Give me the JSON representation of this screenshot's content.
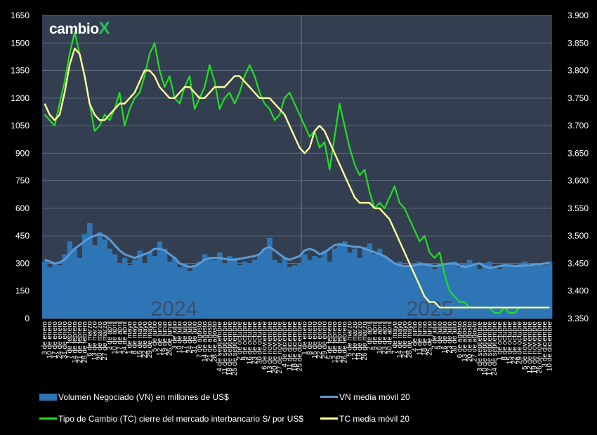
{
  "logo": {
    "text": "cambio",
    "mark": "X"
  },
  "legend": {
    "vn": "Volumen Negociado (VN) en millones de US$",
    "vn_ma": "VN media móvil 20",
    "tc": "Tipo de Cambio (TC) cierre del mercado interbancario S/ por US$",
    "tc_ma": "TC media móvil 20"
  },
  "colors": {
    "background": "#000000",
    "plot": "#333f50",
    "vn": "#2e75b6",
    "vn_ma": "#5b9bd5",
    "tc": "#22dd22",
    "tc_ma": "#ffff99",
    "year_text": "#3c4f69"
  },
  "chart_data": {
    "type": "bar",
    "left_axis": {
      "range": [
        0,
        1650
      ],
      "ticks": [
        "0",
        "150",
        "300",
        "450",
        "600",
        "750",
        "900",
        "1050",
        "1200",
        "1350",
        "1500",
        "1650"
      ]
    },
    "right_axis": {
      "range": [
        3.35,
        3.9
      ],
      "ticks": [
        "3.350",
        "3.400",
        "3.450",
        "3.500",
        "3.550",
        "3.600",
        "3.650",
        "3.700",
        "3.750",
        "3.800",
        "3.850",
        "3.900"
      ]
    },
    "year_labels": [
      "2024",
      "2025"
    ],
    "x_labels": [
      "3 de enero",
      "10 de enero",
      "17 de enero",
      "24 de enero",
      "31 de enero",
      "7 de febrero",
      "14 de febrero",
      "21 de febrero",
      "28 de febrero",
      "6 de marzo",
      "13 de marzo",
      "20 de marzo",
      "27 de marzo",
      "3 de abril",
      "10 de abril",
      "17 de abril",
      "24 de abril",
      "1 de mayo",
      "8 de mayo",
      "15 de mayo",
      "22 de mayo",
      "29 de mayo",
      "5 de junio",
      "12 de junio",
      "19 de junio",
      "26 de junio",
      "3 de julio",
      "10 de julio",
      "17 de julio",
      "24 de julio",
      "31 de julio",
      "7 de agosto",
      "14 de agosto",
      "21 de agosto",
      "28 de agosto",
      "4 de septiembre",
      "11 de septiembre",
      "18 de septiembre",
      "25 de septiembre",
      "2 de octubre",
      "9 de octubre",
      "16 de octubre",
      "23 de octubre",
      "30 de octubre",
      "6 de noviembre",
      "13 de noviembre",
      "20 de noviembre",
      "27 de noviembre",
      "4 de diciembre",
      "11 de diciembre",
      "18 de diciembre",
      "25 de diciembre",
      "1 de enero",
      "8 de enero",
      "15 de enero",
      "22 de enero",
      "29 de enero",
      "5 de febrero",
      "12 de febrero",
      "19 de febrero",
      "26 de febrero",
      "5 de marzo",
      "12 de marzo",
      "19 de marzo",
      "26 de marzo",
      "2 de abril",
      "9 de abril",
      "16 de abril",
      "23 de abril",
      "30 de abril",
      "7 de mayo",
      "14 de mayo",
      "21 de mayo",
      "28 de mayo",
      "4 de junio",
      "11 de junio",
      "18 de junio",
      "25 de junio",
      "2 de julio",
      "9 de julio",
      "16 de julio",
      "23 de julio",
      "30 de julio",
      "6 de agosto",
      "13 de agosto",
      "20 de agosto",
      "27 de agosto",
      "3 de septiembre",
      "10 de septiembre",
      "17 de septiembre",
      "24 de septiembre",
      "1 de octubre",
      "8 de octubre",
      "15 de octubre",
      "22 de octubre",
      "29 de octubre",
      "5 de noviembre",
      "12 de noviembre",
      "19 de noviembre",
      "26 de noviembre",
      "3 de diciembre",
      "10 de diciembre"
    ],
    "series": [
      {
        "name": "Volumen Negociado (VN) en millones de US$",
        "axis": "left",
        "type": "bar",
        "values": [
          310,
          280,
          300,
          290,
          350,
          420,
          380,
          330,
          460,
          520,
          400,
          470,
          430,
          380,
          350,
          300,
          330,
          290,
          320,
          370,
          300,
          360,
          340,
          420,
          380,
          310,
          330,
          280,
          300,
          260,
          290,
          310,
          350,
          330,
          320,
          360,
          300,
          340,
          330,
          290,
          310,
          300,
          320,
          350,
          380,
          440,
          320,
          300,
          330,
          280,
          290,
          300,
          350,
          320,
          340,
          330,
          370,
          310,
          380,
          400,
          420,
          360,
          380,
          330,
          390,
          410,
          350,
          380,
          340,
          320,
          300,
          310,
          290,
          280,
          300,
          310,
          290,
          300,
          270,
          300,
          290,
          300,
          310,
          280,
          300,
          320,
          290,
          270,
          300,
          310,
          280,
          270,
          300,
          290,
          280,
          300,
          310,
          290,
          300,
          300,
          290,
          310
        ]
      },
      {
        "name": "VN media móvil 20",
        "axis": "left",
        "type": "line",
        "values": [
          320,
          310,
          300,
          305,
          320,
          350,
          380,
          400,
          420,
          440,
          450,
          460,
          450,
          430,
          400,
          370,
          350,
          340,
          330,
          340,
          350,
          360,
          380,
          380,
          370,
          350,
          330,
          300,
          290,
          280,
          285,
          300,
          320,
          330,
          330,
          330,
          325,
          320,
          320,
          325,
          330,
          335,
          340,
          350,
          380,
          390,
          370,
          350,
          330,
          320,
          330,
          340,
          370,
          380,
          370,
          350,
          360,
          380,
          400,
          405,
          400,
          395,
          390,
          390,
          380,
          370,
          360,
          350,
          340,
          320,
          300,
          290,
          285,
          285,
          290,
          295,
          295,
          290,
          285,
          290,
          295,
          300,
          300,
          290,
          280,
          285,
          295,
          300,
          285,
          275,
          280,
          285,
          290,
          290,
          285,
          285,
          290,
          290,
          295,
          295,
          300,
          305
        ]
      },
      {
        "name": "Tipo de Cambio (TC) cierre del mercado interbancario S/ por US$",
        "axis": "right",
        "type": "line",
        "values": [
          3.72,
          3.71,
          3.7,
          3.74,
          3.78,
          3.83,
          3.87,
          3.83,
          3.79,
          3.74,
          3.69,
          3.7,
          3.72,
          3.71,
          3.73,
          3.76,
          3.7,
          3.73,
          3.75,
          3.76,
          3.79,
          3.83,
          3.85,
          3.8,
          3.77,
          3.79,
          3.75,
          3.74,
          3.77,
          3.79,
          3.73,
          3.75,
          3.77,
          3.81,
          3.78,
          3.73,
          3.75,
          3.76,
          3.74,
          3.76,
          3.79,
          3.81,
          3.79,
          3.76,
          3.74,
          3.73,
          3.71,
          3.72,
          3.75,
          3.76,
          3.74,
          3.72,
          3.7,
          3.68,
          3.69,
          3.66,
          3.67,
          3.62,
          3.68,
          3.74,
          3.7,
          3.66,
          3.63,
          3.61,
          3.62,
          3.58,
          3.55,
          3.56,
          3.55,
          3.57,
          3.59,
          3.56,
          3.55,
          3.53,
          3.51,
          3.49,
          3.5,
          3.47,
          3.46,
          3.47,
          3.43,
          3.4,
          3.39,
          3.38,
          3.38,
          3.37,
          3.37,
          3.37,
          3.37,
          3.37,
          3.36,
          3.36,
          3.37,
          3.36,
          3.36,
          3.37,
          3.37,
          3.37,
          3.37,
          3.37,
          3.37,
          3.37
        ]
      },
      {
        "name": "TC media móvil 20",
        "axis": "right",
        "type": "line",
        "values": [
          3.74,
          3.72,
          3.71,
          3.72,
          3.76,
          3.81,
          3.84,
          3.83,
          3.79,
          3.74,
          3.72,
          3.71,
          3.71,
          3.72,
          3.73,
          3.74,
          3.74,
          3.75,
          3.76,
          3.78,
          3.8,
          3.8,
          3.79,
          3.77,
          3.76,
          3.75,
          3.75,
          3.76,
          3.77,
          3.77,
          3.76,
          3.75,
          3.75,
          3.76,
          3.77,
          3.77,
          3.77,
          3.78,
          3.79,
          3.79,
          3.78,
          3.77,
          3.76,
          3.75,
          3.75,
          3.75,
          3.74,
          3.73,
          3.72,
          3.7,
          3.68,
          3.66,
          3.65,
          3.66,
          3.69,
          3.7,
          3.69,
          3.67,
          3.65,
          3.63,
          3.61,
          3.59,
          3.57,
          3.56,
          3.56,
          3.56,
          3.55,
          3.55,
          3.54,
          3.53,
          3.51,
          3.49,
          3.47,
          3.45,
          3.43,
          3.41,
          3.39,
          3.38,
          3.38,
          3.37,
          3.37,
          3.37,
          3.37,
          3.37,
          3.37,
          3.37,
          3.37,
          3.37,
          3.37,
          3.37,
          3.37,
          3.37,
          3.37,
          3.37,
          3.37,
          3.37,
          3.37,
          3.37,
          3.37,
          3.37,
          3.37,
          3.37
        ]
      }
    ]
  }
}
